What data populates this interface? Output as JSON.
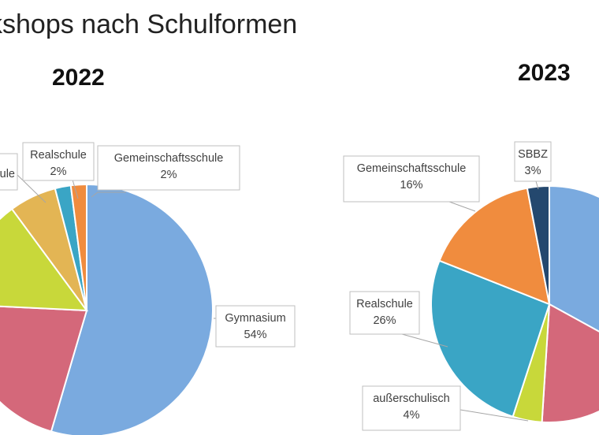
{
  "page_title": "kshops nach Schulformen",
  "chart_data": [
    {
      "type": "pie",
      "title": "2022",
      "slices": [
        {
          "label": "Gymnasium",
          "value": 54,
          "percent_label": "54%",
          "color": "#7aaadf",
          "shown_label": true
        },
        {
          "label": "",
          "value": 21,
          "percent_label": "",
          "color": "#d4687a",
          "shown_label": false
        },
        {
          "label": "",
          "value": 14,
          "percent_label": "",
          "color": "#c8d83a",
          "shown_label": false
        },
        {
          "label": "ule",
          "value": 6,
          "percent_label": "",
          "color": "#e3b554",
          "shown_label": true
        },
        {
          "label": "Realschule",
          "value": 2,
          "percent_label": "2%",
          "color": "#3aa5c5",
          "shown_label": true
        },
        {
          "label": "Gemeinschaftsschule",
          "value": 2,
          "percent_label": "2%",
          "color": "#f08c3e",
          "shown_label": true
        }
      ]
    },
    {
      "type": "pie",
      "title": "2023",
      "slices": [
        {
          "label": "",
          "value": 33,
          "percent_label": "",
          "color": "#7aaadf",
          "shown_label": false
        },
        {
          "label": "",
          "value": 18,
          "percent_label": "",
          "color": "#d4687a",
          "shown_label": false
        },
        {
          "label": "außerschulisch",
          "value": 4,
          "percent_label": "4%",
          "color": "#c8d83a",
          "shown_label": true
        },
        {
          "label": "Realschule",
          "value": 26,
          "percent_label": "26%",
          "color": "#3aa5c5",
          "shown_label": true
        },
        {
          "label": "Gemeinschaftsschule",
          "value": 16,
          "percent_label": "16%",
          "color": "#f08c3e",
          "shown_label": true
        },
        {
          "label": "SBBZ",
          "value": 3,
          "percent_label": "3%",
          "color": "#24486e",
          "shown_label": true
        }
      ]
    }
  ]
}
